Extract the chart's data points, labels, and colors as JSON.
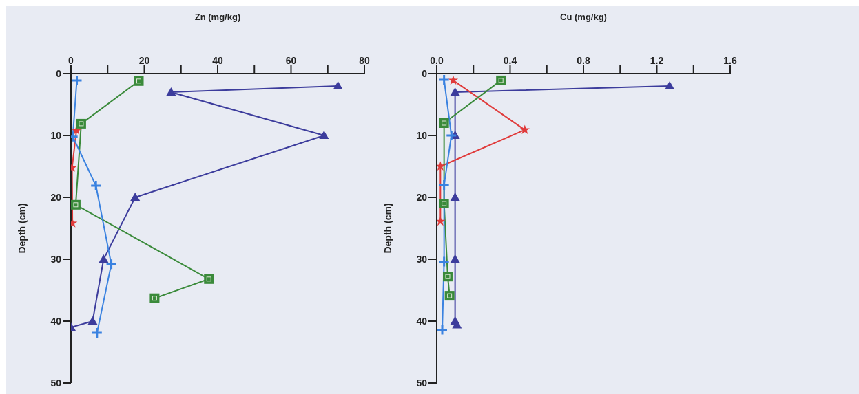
{
  "chart_data": [
    {
      "type": "line",
      "xlabel": "Zn (mg/kg)",
      "ylabel": "Depth (cm)",
      "xlim": [
        0,
        80
      ],
      "xticks": [
        0,
        {
          "value": 10,
          "label": null
        },
        20,
        {
          "value": 30,
          "label": null
        },
        40,
        {
          "value": 50,
          "label": null
        },
        60,
        {
          "value": 70,
          "label": null
        },
        80
      ],
      "ylim": [
        50,
        0
      ],
      "yticks": [
        0,
        10,
        20,
        30,
        40,
        50
      ],
      "series": [
        {
          "color": "#3c3c9c",
          "marker": "triangle",
          "x": [
            72.8,
            27.3,
            69,
            17.5,
            8.9,
            5.9,
            0
          ],
          "values": [
            2,
            3,
            10,
            20,
            30,
            40,
            41
          ]
        },
        {
          "color": "#e03a3a",
          "marker": "star",
          "x": [
            null,
            1.5,
            0.3,
            0.4
          ],
          "values": [
            null,
            9.2,
            15.2,
            24.2
          ]
        },
        {
          "color": "#3a8a3a",
          "marker": "square",
          "x": [
            18.5,
            2.8,
            1.3,
            37.6,
            22.8
          ],
          "values": [
            1.2,
            8.1,
            21.2,
            33.2,
            36.3
          ]
        },
        {
          "color": "#3a82e0",
          "marker": "cross",
          "x": [
            1.6,
            0.5,
            6.8,
            11,
            7.1
          ],
          "values": [
            1.1,
            10.2,
            18.1,
            30.8,
            41.9
          ]
        }
      ]
    },
    {
      "type": "line",
      "xlabel": "Cu (mg/kg)",
      "ylabel": "Depth (cm)",
      "xlim": [
        0,
        1.6
      ],
      "xticks": [
        {
          "value": 0,
          "label": "0.0"
        },
        {
          "value": 0.2,
          "label": null
        },
        0.4,
        {
          "value": 0.6,
          "label": null
        },
        0.8,
        {
          "value": 1,
          "label": null
        },
        1.2,
        {
          "value": 1.4,
          "label": null
        },
        1.6
      ],
      "ylim": [
        50,
        0
      ],
      "yticks": [
        0,
        10,
        20,
        30,
        40,
        50
      ],
      "series": [
        {
          "color": "#3c3c9c",
          "marker": "triangle",
          "x": [
            1.27,
            0.1,
            0.1,
            0.1,
            0.1,
            0.1,
            0.11
          ],
          "values": [
            2,
            3,
            10,
            20,
            30,
            40,
            40.6
          ]
        },
        {
          "color": "#e03a3a",
          "marker": "star",
          "x": [
            0.09,
            0.48,
            0.02,
            0.02
          ],
          "values": [
            1.1,
            9.1,
            15,
            23.9
          ]
        },
        {
          "color": "#3a8a3a",
          "marker": "square",
          "x": [
            0.35,
            0.04,
            0.04,
            0.06,
            0.07
          ],
          "values": [
            1.1,
            8,
            21,
            32.8,
            35.9
          ]
        },
        {
          "color": "#3a82e0",
          "marker": "cross",
          "x": [
            0.04,
            0.08,
            0.04,
            0.04,
            0.03
          ],
          "values": [
            1,
            10,
            18,
            30.4,
            41.4
          ]
        }
      ]
    }
  ]
}
